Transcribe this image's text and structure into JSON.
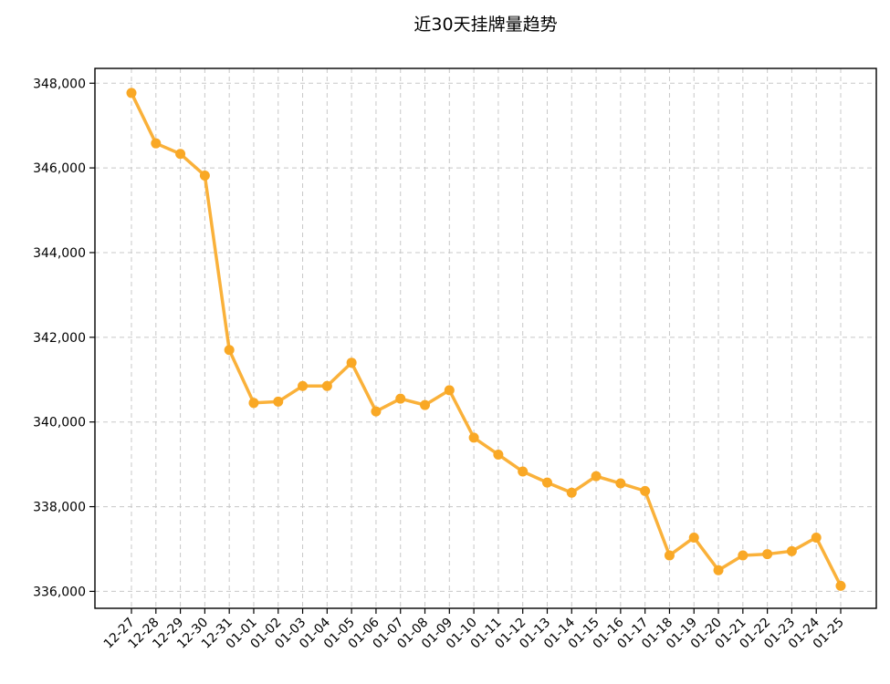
{
  "chart_data": {
    "type": "line",
    "title": "近30天挂牌量趋势",
    "xlabel": "",
    "ylabel": "",
    "x": [
      "12-27",
      "12-28",
      "12-29",
      "12-30",
      "12-31",
      "01-01",
      "01-02",
      "01-03",
      "01-04",
      "01-05",
      "01-06",
      "01-07",
      "01-08",
      "01-09",
      "01-10",
      "01-11",
      "01-12",
      "01-13",
      "01-14",
      "01-15",
      "01-16",
      "01-17",
      "01-18",
      "01-19",
      "01-20",
      "01-21",
      "01-22",
      "01-23",
      "01-24",
      "01-25"
    ],
    "series": [
      {
        "values": [
          347770,
          346580,
          346330,
          345820,
          341700,
          340450,
          340480,
          340850,
          340850,
          341400,
          340250,
          340550,
          340400,
          340750,
          339630,
          339230,
          338830,
          338570,
          338330,
          338720,
          338550,
          338370,
          336850,
          337270,
          336500,
          336850,
          336880,
          336950,
          337270,
          336130
        ]
      }
    ],
    "ylim": [
      335600,
      348350
    ],
    "yticks": [
      336000,
      338000,
      340000,
      342000,
      344000,
      346000,
      348000
    ],
    "ytick_labels": [
      "336,000",
      "338,000",
      "340,000",
      "342,000",
      "344,000",
      "346,000",
      "348,000"
    ],
    "grid": true,
    "grid_style": "dashed",
    "line_color": "#F9A825",
    "marker": "circle",
    "legend": "none"
  }
}
